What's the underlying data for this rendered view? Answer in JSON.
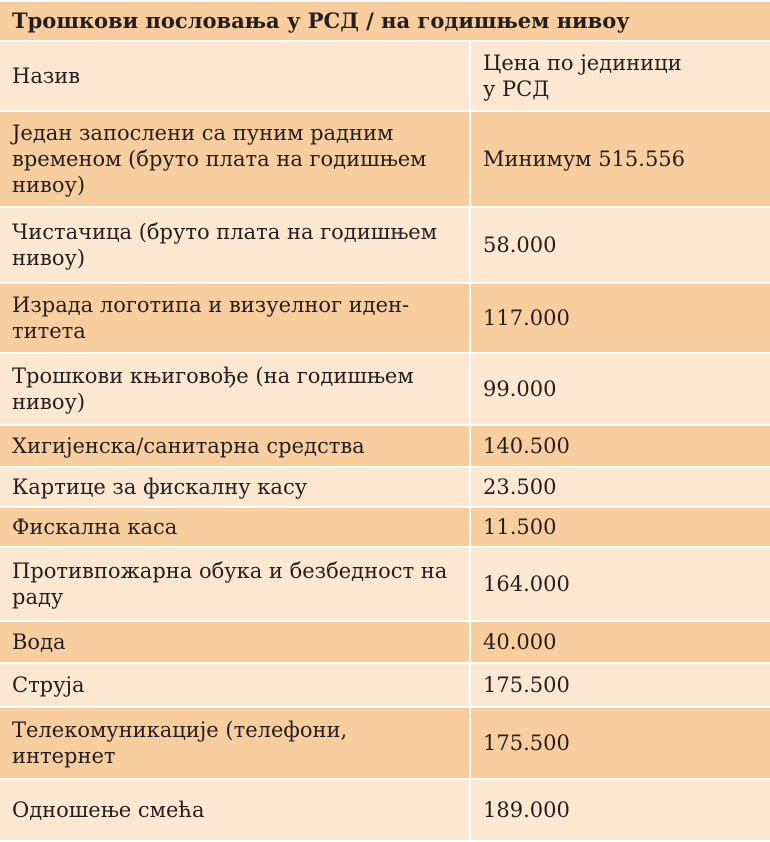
{
  "title": "Трошкови пословања у РСД / на годишњем нивоу",
  "header": {
    "name": "Назив",
    "price_line1": "Цена по јединици",
    "price_line2": "у РСД"
  },
  "rows": [
    {
      "name": "Један запослени са пуним радним временом (бруто плата на годишњем нивоу)",
      "price": "Минимум 515.556"
    },
    {
      "name": "Чистачица (бруто плата на годишњем нивоу)",
      "price": "58.000"
    },
    {
      "name": "Израда логотипа и визуелног иден-\nтитета",
      "price": "117.000"
    },
    {
      "name": "Трошкови књиговође (на годишњем нивоу)",
      "price": "99.000"
    },
    {
      "name": "Хигијенска/санитарна средства",
      "price": "140.500"
    },
    {
      "name": "Картице за фискалну касу",
      "price": "23.500"
    },
    {
      "name": "Фискална каса",
      "price": "11.500"
    },
    {
      "name": "Противпожарна обука и безбедност на раду",
      "price": "164.000"
    },
    {
      "name": "Вода",
      "price": "40.000"
    },
    {
      "name": "Струја",
      "price": "175.500"
    },
    {
      "name": "Телекомуникације (телефони, интернет",
      "price": "175.500"
    },
    {
      "name": "Одношење смећа",
      "price": "189.000"
    }
  ],
  "colors": {
    "orange": "#f8ce9e",
    "light": "#fce7d0",
    "text": "#231f20"
  }
}
